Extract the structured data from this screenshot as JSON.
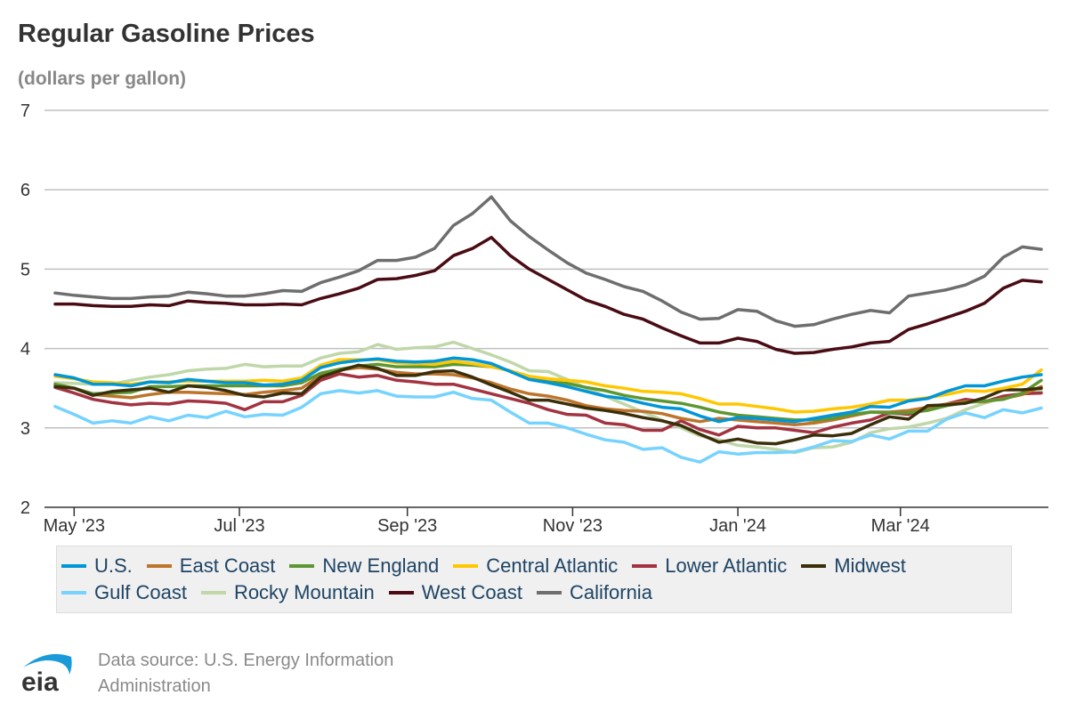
{
  "title": "Regular Gasoline Prices",
  "subtitle": "(dollars per gallon)",
  "source": {
    "line1": "Data source: U.S. Energy Information",
    "line2": "Administration",
    "logo_text": "eia"
  },
  "chart_data": {
    "type": "line",
    "title": "Regular Gasoline Prices",
    "ylabel": "(dollars per gallon)",
    "ylim": [
      2,
      7
    ],
    "yticks": [
      2,
      3,
      4,
      5,
      6,
      7
    ],
    "xlim": [
      "2023-04-24",
      "2024-04-22"
    ],
    "xticks": [
      {
        "date": "2023-05-01",
        "label": "May '23"
      },
      {
        "date": "2023-07-01",
        "label": "Jul '23"
      },
      {
        "date": "2023-09-01",
        "label": "Sep '23"
      },
      {
        "date": "2023-11-01",
        "label": "Nov '23"
      },
      {
        "date": "2024-01-01",
        "label": "Jan '24"
      },
      {
        "date": "2024-03-01",
        "label": "Mar '24"
      }
    ],
    "grid": true,
    "legend": "bottom",
    "x": [
      "2023-04-24",
      "2023-05-01",
      "2023-05-08",
      "2023-05-15",
      "2023-05-22",
      "2023-05-29",
      "2023-06-05",
      "2023-06-12",
      "2023-06-19",
      "2023-06-26",
      "2023-07-03",
      "2023-07-10",
      "2023-07-17",
      "2023-07-24",
      "2023-07-31",
      "2023-08-07",
      "2023-08-14",
      "2023-08-21",
      "2023-08-28",
      "2023-09-04",
      "2023-09-11",
      "2023-09-18",
      "2023-09-25",
      "2023-10-02",
      "2023-10-09",
      "2023-10-16",
      "2023-10-23",
      "2023-10-30",
      "2023-11-06",
      "2023-11-13",
      "2023-11-20",
      "2023-11-27",
      "2023-12-04",
      "2023-12-11",
      "2023-12-18",
      "2023-12-25",
      "2024-01-01",
      "2024-01-08",
      "2024-01-15",
      "2024-01-22",
      "2024-01-29",
      "2024-02-05",
      "2024-02-12",
      "2024-02-19",
      "2024-02-26",
      "2024-03-04",
      "2024-03-11",
      "2024-03-18",
      "2024-03-25",
      "2024-04-01",
      "2024-04-08",
      "2024-04-15",
      "2024-04-22"
    ],
    "series": [
      {
        "name": "California",
        "color": "#6e6e6e",
        "values": [
          4.7,
          4.67,
          4.65,
          4.63,
          4.63,
          4.65,
          4.66,
          4.71,
          4.69,
          4.66,
          4.66,
          4.69,
          4.73,
          4.72,
          4.83,
          4.9,
          4.98,
          5.11,
          5.11,
          5.15,
          5.26,
          5.55,
          5.7,
          5.91,
          5.61,
          5.41,
          5.24,
          5.08,
          4.95,
          4.87,
          4.78,
          4.72,
          4.6,
          4.46,
          4.37,
          4.38,
          4.49,
          4.47,
          4.35,
          4.28,
          4.3,
          4.37,
          4.43,
          4.48,
          4.45,
          4.66,
          4.7,
          4.74,
          4.8,
          4.91,
          5.15,
          5.28,
          5.25
        ]
      },
      {
        "name": "West Coast",
        "color": "#4a0c14",
        "values": [
          4.56,
          4.56,
          4.54,
          4.53,
          4.53,
          4.55,
          4.54,
          4.6,
          4.58,
          4.57,
          4.55,
          4.55,
          4.56,
          4.55,
          4.63,
          4.69,
          4.76,
          4.87,
          4.88,
          4.92,
          4.98,
          5.17,
          5.26,
          5.4,
          5.17,
          5.0,
          4.87,
          4.74,
          4.61,
          4.53,
          4.43,
          4.37,
          4.26,
          4.16,
          4.07,
          4.07,
          4.13,
          4.09,
          3.99,
          3.94,
          3.95,
          3.99,
          4.02,
          4.07,
          4.09,
          4.24,
          4.31,
          4.39,
          4.47,
          4.57,
          4.76,
          4.86,
          4.84
        ]
      },
      {
        "name": "Rocky Mountain",
        "color": "#bfd7a9",
        "values": [
          3.57,
          3.56,
          3.55,
          3.55,
          3.6,
          3.64,
          3.67,
          3.72,
          3.74,
          3.75,
          3.8,
          3.77,
          3.78,
          3.78,
          3.88,
          3.94,
          3.96,
          4.05,
          3.99,
          4.01,
          4.02,
          4.08,
          4.0,
          3.92,
          3.83,
          3.72,
          3.71,
          3.61,
          3.5,
          3.4,
          3.3,
          3.2,
          3.1,
          3.0,
          2.9,
          2.85,
          2.78,
          2.76,
          2.73,
          2.69,
          2.75,
          2.76,
          2.82,
          2.94,
          2.99,
          3.01,
          3.06,
          3.12,
          3.23,
          3.31,
          3.38,
          3.44,
          3.47
        ]
      },
      {
        "name": "Gulf Coast",
        "color": "#76d3ff",
        "values": [
          3.27,
          3.17,
          3.06,
          3.09,
          3.06,
          3.14,
          3.09,
          3.16,
          3.13,
          3.21,
          3.14,
          3.17,
          3.16,
          3.26,
          3.43,
          3.47,
          3.44,
          3.47,
          3.4,
          3.39,
          3.39,
          3.45,
          3.37,
          3.35,
          3.2,
          3.06,
          3.06,
          3.0,
          2.92,
          2.85,
          2.82,
          2.73,
          2.75,
          2.63,
          2.57,
          2.7,
          2.67,
          2.69,
          2.69,
          2.7,
          2.76,
          2.84,
          2.83,
          2.91,
          2.86,
          2.96,
          2.96,
          3.11,
          3.19,
          3.13,
          3.23,
          3.19,
          3.25
        ]
      },
      {
        "name": "Lower Atlantic",
        "color": "#a33341",
        "values": [
          3.51,
          3.44,
          3.36,
          3.32,
          3.29,
          3.31,
          3.3,
          3.34,
          3.33,
          3.31,
          3.23,
          3.33,
          3.33,
          3.41,
          3.6,
          3.68,
          3.64,
          3.66,
          3.6,
          3.58,
          3.55,
          3.55,
          3.49,
          3.43,
          3.37,
          3.31,
          3.23,
          3.17,
          3.16,
          3.06,
          3.04,
          2.97,
          2.97,
          3.09,
          2.98,
          2.91,
          3.02,
          3.0,
          3.0,
          2.97,
          2.94,
          3.01,
          3.06,
          3.1,
          3.19,
          3.17,
          3.25,
          3.3,
          3.36,
          3.33,
          3.4,
          3.43,
          3.44
        ]
      },
      {
        "name": "East Coast",
        "color": "#bd742b",
        "values": [
          3.55,
          3.5,
          3.42,
          3.4,
          3.38,
          3.42,
          3.45,
          3.45,
          3.44,
          3.43,
          3.42,
          3.45,
          3.47,
          3.5,
          3.66,
          3.73,
          3.76,
          3.74,
          3.7,
          3.68,
          3.68,
          3.67,
          3.63,
          3.57,
          3.49,
          3.43,
          3.4,
          3.35,
          3.28,
          3.24,
          3.22,
          3.21,
          3.18,
          3.12,
          3.08,
          3.12,
          3.1,
          3.08,
          3.06,
          3.04,
          3.06,
          3.1,
          3.15,
          3.2,
          3.2,
          3.22,
          3.26,
          3.3,
          3.33,
          3.33,
          3.37,
          3.42,
          3.52
        ]
      },
      {
        "name": "New England",
        "color": "#5d9732",
        "values": [
          3.55,
          3.5,
          3.43,
          3.44,
          3.45,
          3.52,
          3.52,
          3.53,
          3.53,
          3.53,
          3.53,
          3.53,
          3.53,
          3.57,
          3.69,
          3.74,
          3.78,
          3.8,
          3.77,
          3.77,
          3.77,
          3.8,
          3.79,
          3.77,
          3.72,
          3.63,
          3.58,
          3.56,
          3.51,
          3.47,
          3.41,
          3.37,
          3.34,
          3.31,
          3.26,
          3.2,
          3.16,
          3.14,
          3.12,
          3.1,
          3.1,
          3.12,
          3.17,
          3.2,
          3.19,
          3.19,
          3.22,
          3.28,
          3.32,
          3.34,
          3.36,
          3.44,
          3.6
        ]
      },
      {
        "name": "Midwest",
        "color": "#3b2f0b",
        "values": [
          3.52,
          3.5,
          3.41,
          3.46,
          3.48,
          3.5,
          3.45,
          3.53,
          3.51,
          3.47,
          3.41,
          3.39,
          3.44,
          3.43,
          3.64,
          3.72,
          3.79,
          3.75,
          3.66,
          3.66,
          3.71,
          3.72,
          3.64,
          3.54,
          3.45,
          3.35,
          3.35,
          3.3,
          3.25,
          3.22,
          3.18,
          3.13,
          3.09,
          3.03,
          2.92,
          2.82,
          2.86,
          2.81,
          2.8,
          2.85,
          2.91,
          2.9,
          2.93,
          3.04,
          3.14,
          3.11,
          3.28,
          3.29,
          3.31,
          3.38,
          3.48,
          3.48,
          3.5
        ]
      },
      {
        "name": "Central Atlantic",
        "color": "#ffc700",
        "values": [
          3.65,
          3.62,
          3.58,
          3.57,
          3.55,
          3.58,
          3.58,
          3.59,
          3.59,
          3.59,
          3.59,
          3.6,
          3.59,
          3.63,
          3.79,
          3.86,
          3.86,
          3.86,
          3.82,
          3.81,
          3.8,
          3.84,
          3.81,
          3.77,
          3.72,
          3.65,
          3.62,
          3.6,
          3.58,
          3.53,
          3.5,
          3.46,
          3.45,
          3.43,
          3.37,
          3.3,
          3.3,
          3.27,
          3.24,
          3.2,
          3.21,
          3.24,
          3.26,
          3.3,
          3.35,
          3.35,
          3.38,
          3.42,
          3.47,
          3.46,
          3.5,
          3.55,
          3.73
        ]
      },
      {
        "name": "U.S.",
        "color": "#0096d7",
        "values": [
          3.67,
          3.63,
          3.55,
          3.55,
          3.53,
          3.58,
          3.57,
          3.61,
          3.59,
          3.57,
          3.57,
          3.54,
          3.55,
          3.6,
          3.76,
          3.82,
          3.85,
          3.87,
          3.84,
          3.83,
          3.84,
          3.88,
          3.86,
          3.81,
          3.71,
          3.61,
          3.57,
          3.52,
          3.46,
          3.4,
          3.37,
          3.31,
          3.26,
          3.24,
          3.15,
          3.08,
          3.13,
          3.12,
          3.1,
          3.08,
          3.12,
          3.16,
          3.2,
          3.27,
          3.26,
          3.34,
          3.37,
          3.46,
          3.53,
          3.53,
          3.59,
          3.64,
          3.67
        ]
      }
    ],
    "legend_order": [
      "U.S.",
      "East Coast",
      "New England",
      "Central Atlantic",
      "Lower Atlantic",
      "Midwest",
      "Gulf Coast",
      "Rocky Mountain",
      "West Coast",
      "California"
    ]
  }
}
